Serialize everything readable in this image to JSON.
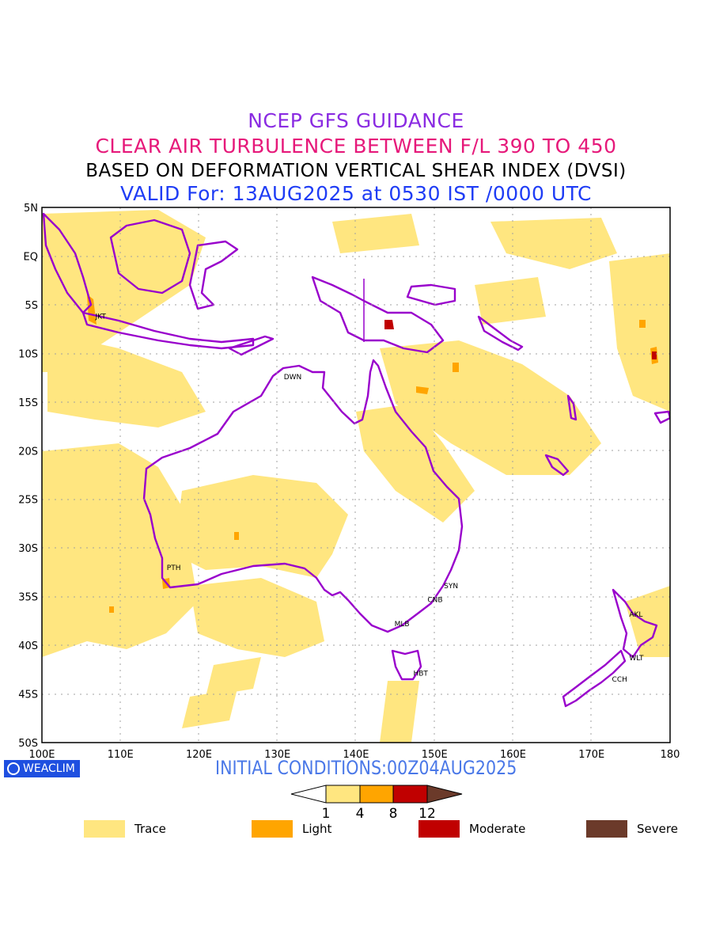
{
  "titles": {
    "line1": "NCEP GFS GUIDANCE",
    "line2": "CLEAR AIR TURBULENCE BETWEEN F/L 390 TO 450",
    "line3": "BASED ON DEFORMATION VERTICAL SHEAR INDEX (DVSI)",
    "line4": "VALID For: 13AUG2025 at 0530 IST /0000 UTC"
  },
  "colors": {
    "title1": "#8a2be2",
    "title2": "#e6197a",
    "title4": "#1f3df5",
    "trace": "#ffe680",
    "light": "#ffa500",
    "moderate": "#c00000",
    "severe": "#6b3a2a",
    "coastline": "#9900cc"
  },
  "map": {
    "lat_labels": [
      "5N",
      "EQ",
      "5S",
      "10S",
      "15S",
      "20S",
      "25S",
      "30S",
      "35S",
      "40S",
      "45S",
      "50S"
    ],
    "lon_labels": [
      "100E",
      "110E",
      "120E",
      "130E",
      "140E",
      "150E",
      "160E",
      "170E",
      "180"
    ],
    "stations": [
      {
        "code": "JKT",
        "lon": 106.8,
        "lat": -6.2
      },
      {
        "code": "DWN",
        "lon": 130.8,
        "lat": -12.4
      },
      {
        "code": "PTH",
        "lon": 115.9,
        "lat": -32.0
      },
      {
        "code": "SYN",
        "lon": 151.2,
        "lat": -33.9
      },
      {
        "code": "CNB",
        "lon": 149.1,
        "lat": -35.3
      },
      {
        "code": "MLB",
        "lon": 144.9,
        "lat": -37.8
      },
      {
        "code": "HBT",
        "lon": 147.3,
        "lat": -42.9
      },
      {
        "code": "AKL",
        "lon": 174.8,
        "lat": -36.8
      },
      {
        "code": "WLT",
        "lon": 174.8,
        "lat": -41.3
      },
      {
        "code": "CCH",
        "lon": 172.6,
        "lat": -43.5
      }
    ]
  },
  "footer": {
    "initial_conditions": "INITIAL CONDITIONS:00Z04AUG2025",
    "logo_text": "WEACLIM"
  },
  "colorbar": {
    "ticks": [
      "1",
      "4",
      "8",
      "12"
    ]
  },
  "legend": [
    {
      "label": "Trace",
      "color": "#ffe680"
    },
    {
      "label": "Light",
      "color": "#ffa500"
    },
    {
      "label": "Moderate",
      "color": "#c00000"
    },
    {
      "label": "Severe",
      "color": "#6b3a2a"
    }
  ]
}
